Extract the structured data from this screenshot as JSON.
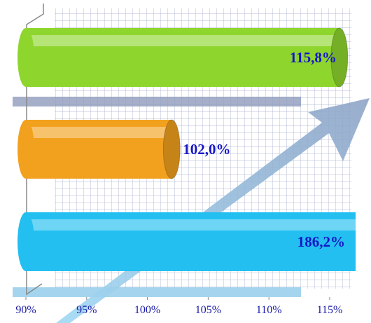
{
  "chart_data": {
    "type": "cylinder-bar",
    "values": [
      115.8,
      102.0,
      186.2
    ],
    "value_labels": [
      "115,8%",
      "102,0%",
      "186,2%"
    ],
    "colors": [
      "#8ed62e",
      "#f2a11e",
      "#22bff0"
    ],
    "xlim": [
      90,
      116.5
    ],
    "xticks": [
      {
        "value": 90,
        "label": "90%"
      },
      {
        "value": 95,
        "label": "95%"
      },
      {
        "value": 100,
        "label": "100%"
      },
      {
        "value": 105,
        "label": "105%"
      },
      {
        "value": 110,
        "label": "110%"
      },
      {
        "value": 115,
        "label": "115%"
      }
    ]
  }
}
